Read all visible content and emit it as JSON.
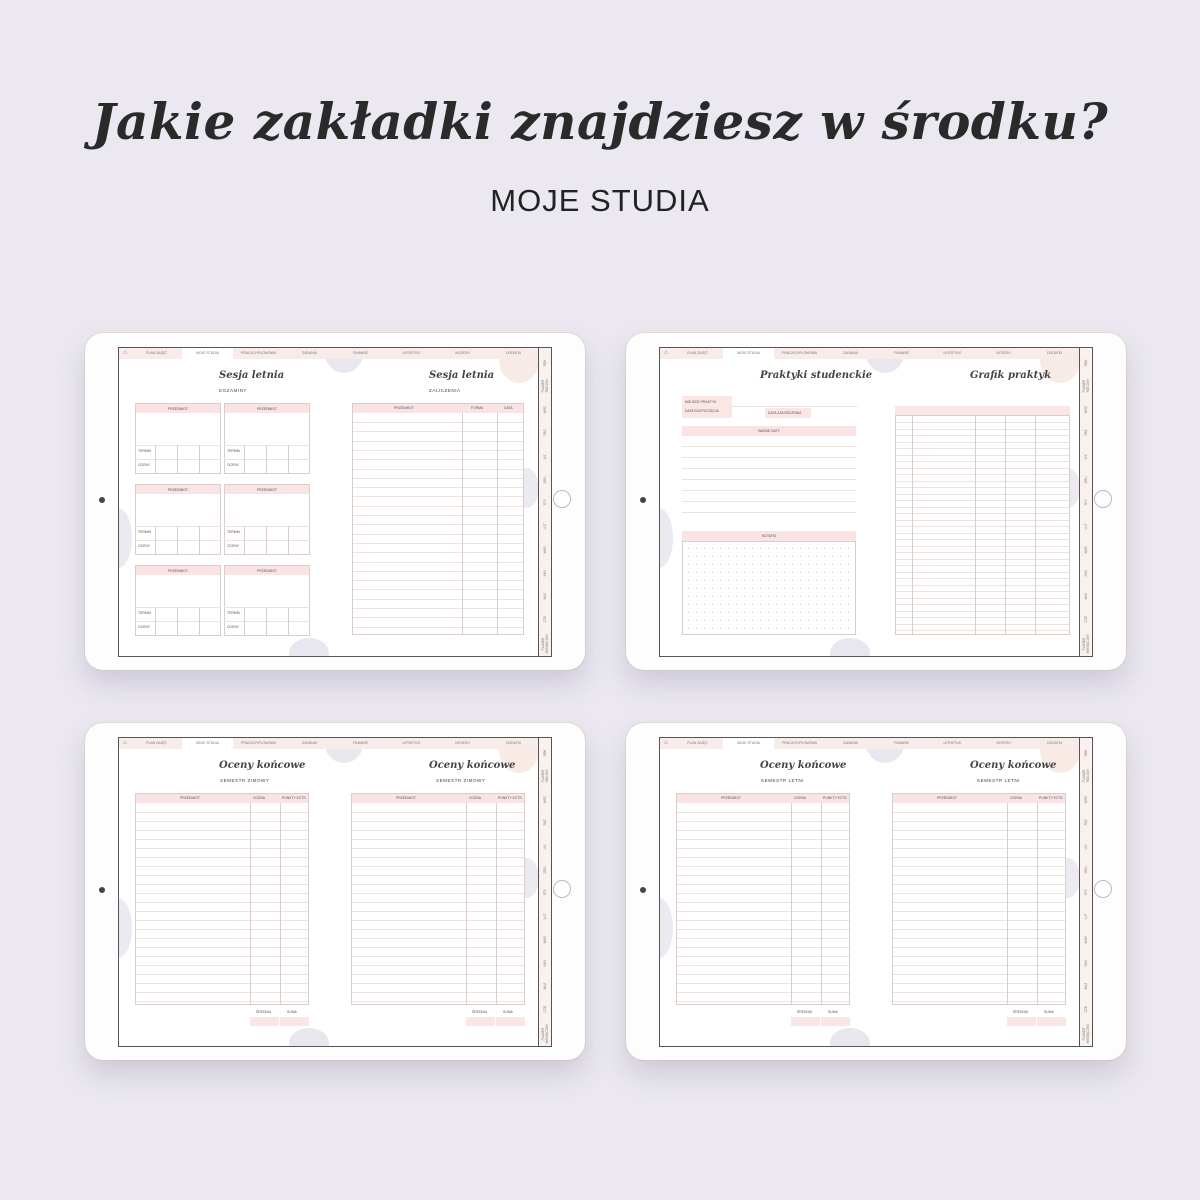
{
  "headline": "Jakie zakładki znajdziesz w środku?",
  "subheadline": "MOJE STUDIA",
  "colors": {
    "background": "#ebe8f1",
    "accent_pink": "#f9e3e3",
    "tab_bar": "#f7ecea"
  },
  "planner": {
    "home_icon": "home-icon",
    "tabs": [
      "PLAN ZAJĘĆ",
      "MOJE STUDIA",
      "PRACA DYPLOMOWA",
      "ZADANIA",
      "FINANSE",
      "LIFESTYLE",
      "NOTATKI",
      "DODATKI"
    ],
    "active_tab": "MOJE STUDIA",
    "side_tabs": [
      "ROK",
      "PLANER ROCZNY",
      "WRZ",
      "PAŹ",
      "LIS",
      "GRU",
      "STY",
      "LUT",
      "MAR",
      "KWI",
      "MAJ",
      "CZE",
      "PLANER MIESIĘCZNY"
    ]
  },
  "pages": [
    {
      "left": {
        "title": "Sesja letnia",
        "subtitle": "EGZAMINY",
        "card_header": "PRZEDMIOT",
        "row_labels": [
          "TERMIN",
          "OCENY"
        ]
      },
      "right": {
        "title": "Sesja letnia",
        "subtitle": "ZALICZENIA",
        "columns": [
          "PRZEDMIOT",
          "FORMA",
          "DATA"
        ]
      }
    },
    {
      "left": {
        "title": "Praktyki studenckie",
        "fields": [
          "MIEJSCE PRAKTYK",
          "DATA ROZPOCZĘCIA",
          "DATA ZAKOŃCZENIA"
        ],
        "important_dates": "WAŻNE DATY",
        "notes": "NOTATKI"
      },
      "right": {
        "title": "Grafik praktyk"
      }
    },
    {
      "left": {
        "title": "Oceny końcowe",
        "subtitle": "SEMESTR ZIMOWY",
        "columns": [
          "PRZEDMIOT",
          "OCENA",
          "PUNKTY ECTS"
        ],
        "footer": [
          "ŚREDNIA",
          "SUMA"
        ]
      },
      "right": {
        "title": "Oceny końcowe",
        "subtitle": "SEMESTR ZIMOWY",
        "columns": [
          "PRZEDMIOT",
          "OCENA",
          "PUNKTY ECTS"
        ],
        "footer": [
          "ŚREDNIA",
          "SUMA"
        ]
      }
    },
    {
      "left": {
        "title": "Oceny końcowe",
        "subtitle": "SEMESTR LETNI",
        "columns": [
          "PRZEDMIOT",
          "OCENA",
          "PUNKTY ECTS"
        ],
        "footer": [
          "ŚREDNIA",
          "SUMA"
        ]
      },
      "right": {
        "title": "Oceny końcowe",
        "subtitle": "SEMESTR LETNI",
        "columns": [
          "PRZEDMIOT",
          "OCENA",
          "PUNKTY ECTS"
        ],
        "footer": [
          "ŚREDNIA",
          "SUMA"
        ]
      }
    }
  ]
}
